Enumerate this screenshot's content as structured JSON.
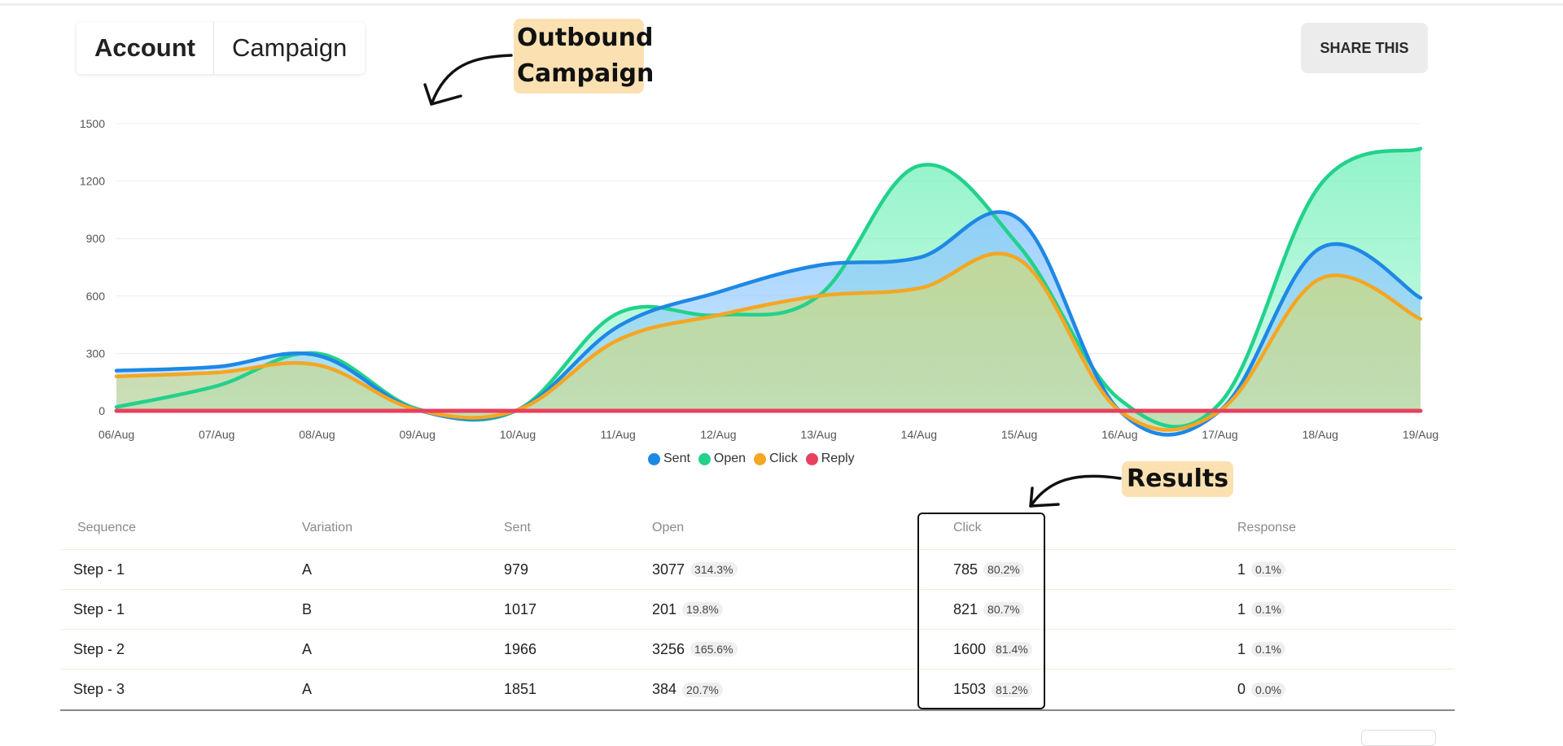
{
  "tabs": [
    {
      "label": "Account",
      "active": true
    },
    {
      "label": "Campaign",
      "active": false
    }
  ],
  "share_button": {
    "label": "SHARE THIS"
  },
  "callouts": {
    "outbound": "Outbound Campaign",
    "results": "Results"
  },
  "colors": {
    "sent": "#1e88e5",
    "open": "#23d18b",
    "click": "#f5a623",
    "reply": "#e8405e"
  },
  "chart_data": {
    "type": "area",
    "title": "",
    "xlabel": "",
    "ylabel": "",
    "ylim": [
      0,
      1500
    ],
    "yticks": [
      0,
      300,
      600,
      900,
      1200,
      1500
    ],
    "grid": true,
    "legend_position": "bottom",
    "categories": [
      "06/Aug",
      "07/Aug",
      "08/Aug",
      "09/Aug",
      "10/Aug",
      "11/Aug",
      "12/Aug",
      "13/Aug",
      "14/Aug",
      "15/Aug",
      "16/Aug",
      "17/Aug",
      "18/Aug",
      "19/Aug"
    ],
    "series": [
      {
        "name": "Sent",
        "color_key": "sent",
        "values": [
          210,
          230,
          290,
          5,
          5,
          440,
          620,
          760,
          800,
          1000,
          0,
          0,
          850,
          590
        ]
      },
      {
        "name": "Open",
        "color_key": "open",
        "values": [
          20,
          130,
          300,
          10,
          5,
          510,
          500,
          600,
          1280,
          860,
          60,
          40,
          1180,
          1370
        ]
      },
      {
        "name": "Click",
        "color_key": "click",
        "values": [
          180,
          200,
          240,
          5,
          5,
          370,
          500,
          600,
          640,
          790,
          0,
          0,
          690,
          480
        ]
      },
      {
        "name": "Reply",
        "color_key": "reply",
        "values": [
          0,
          0,
          0,
          0,
          0,
          0,
          0,
          0,
          0,
          0,
          0,
          0,
          0,
          0
        ]
      }
    ]
  },
  "table": {
    "headers": [
      "Sequence",
      "Variation",
      "Sent",
      "Open",
      "Click",
      "Response"
    ],
    "rows": [
      {
        "sequence": "Step - 1",
        "variation": "A",
        "sent": "979",
        "open": "3077",
        "open_pct": "314.3%",
        "click": "785",
        "click_pct": "80.2%",
        "response": "1",
        "response_pct": "0.1%"
      },
      {
        "sequence": "Step - 1",
        "variation": "B",
        "sent": "1017",
        "open": "201",
        "open_pct": "19.8%",
        "click": "821",
        "click_pct": "80.7%",
        "response": "1",
        "response_pct": "0.1%"
      },
      {
        "sequence": "Step - 2",
        "variation": "A",
        "sent": "1966",
        "open": "3256",
        "open_pct": "165.6%",
        "click": "1600",
        "click_pct": "81.4%",
        "response": "1",
        "response_pct": "0.1%"
      },
      {
        "sequence": "Step - 3",
        "variation": "A",
        "sent": "1851",
        "open": "384",
        "open_pct": "20.7%",
        "click": "1503",
        "click_pct": "81.2%",
        "response": "0",
        "response_pct": "0.0%"
      }
    ]
  }
}
